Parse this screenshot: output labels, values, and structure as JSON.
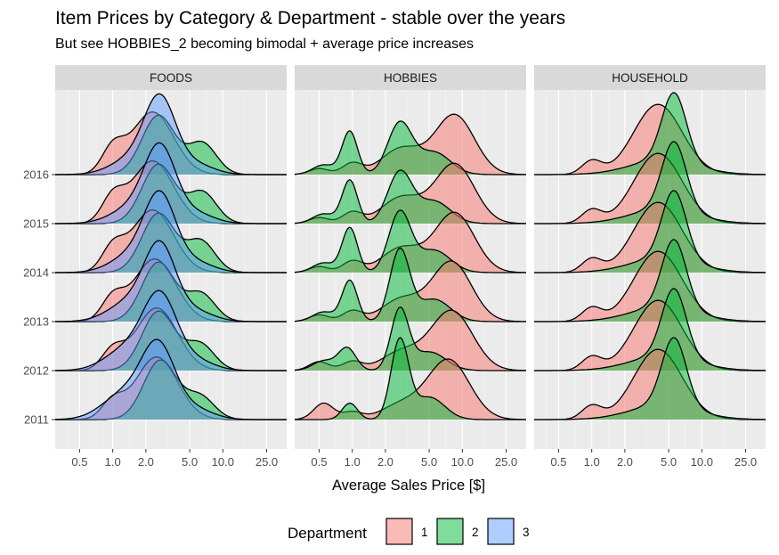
{
  "chart_data": {
    "type": "ridgeline-density",
    "title": "Item Prices by Category & Department - stable over the years",
    "subtitle": "But see HOBBIES_2 becoming bimodal + average price increases",
    "xlabel": "Average Sales Price [$]",
    "x_scale": "log10",
    "xlim": [
      0.3,
      38
    ],
    "x_ticks": [
      0.5,
      1,
      2,
      5,
      10,
      25
    ],
    "x_tick_labels": [
      "0.5",
      "1.0",
      "2.0",
      "5.0",
      "10.0",
      "25.0"
    ],
    "years": [
      "2016",
      "2015",
      "2014",
      "2013",
      "2012",
      "2011"
    ],
    "legend": {
      "title": "Department",
      "position": "bottom",
      "entries": [
        {
          "label": "1",
          "color": "#F8766D"
        },
        {
          "label": "2",
          "color": "#00BA38"
        },
        {
          "label": "3",
          "color": "#619CFF"
        }
      ]
    },
    "panels": [
      {
        "category": "FOODS",
        "departments": [
          {
            "dept": "1",
            "color": "#F8766D",
            "years": {
              "2016": [
                {
                  "x": 1.0,
                  "s": 0.1,
                  "w": 0.35
                },
                {
                  "x": 2.3,
                  "s": 0.19,
                  "w": 0.9
                }
              ],
              "2015": [
                {
                  "x": 1.0,
                  "s": 0.1,
                  "w": 0.35
                },
                {
                  "x": 2.3,
                  "s": 0.19,
                  "w": 0.9
                }
              ],
              "2014": [
                {
                  "x": 1.0,
                  "s": 0.1,
                  "w": 0.33
                },
                {
                  "x": 2.3,
                  "s": 0.19,
                  "w": 0.9
                }
              ],
              "2013": [
                {
                  "x": 1.0,
                  "s": 0.1,
                  "w": 0.32
                },
                {
                  "x": 2.4,
                  "s": 0.19,
                  "w": 0.9
                }
              ],
              "2012": [
                {
                  "x": 1.0,
                  "s": 0.1,
                  "w": 0.28
                },
                {
                  "x": 2.5,
                  "s": 0.19,
                  "w": 0.9
                }
              ],
              "2011": [
                {
                  "x": 1.0,
                  "s": 0.1,
                  "w": 0.25
                },
                {
                  "x": 2.5,
                  "s": 0.19,
                  "w": 0.9
                }
              ]
            }
          },
          {
            "dept": "2",
            "color": "#00BA38",
            "years": {
              "2016": [
                {
                  "x": 2.6,
                  "s": 0.15,
                  "w": 0.85
                },
                {
                  "x": 6.5,
                  "s": 0.13,
                  "w": 0.45
                }
              ],
              "2015": [
                {
                  "x": 2.6,
                  "s": 0.15,
                  "w": 0.85
                },
                {
                  "x": 6.5,
                  "s": 0.13,
                  "w": 0.45
                }
              ],
              "2014": [
                {
                  "x": 2.6,
                  "s": 0.15,
                  "w": 0.85
                },
                {
                  "x": 6.3,
                  "s": 0.13,
                  "w": 0.45
                }
              ],
              "2013": [
                {
                  "x": 2.6,
                  "s": 0.15,
                  "w": 0.85
                },
                {
                  "x": 6.3,
                  "s": 0.13,
                  "w": 0.4
                }
              ],
              "2012": [
                {
                  "x": 2.6,
                  "s": 0.15,
                  "w": 0.85
                },
                {
                  "x": 6.2,
                  "s": 0.13,
                  "w": 0.38
                }
              ],
              "2011": [
                {
                  "x": 2.7,
                  "s": 0.15,
                  "w": 0.85
                },
                {
                  "x": 6.2,
                  "s": 0.13,
                  "w": 0.33
                }
              ]
            }
          },
          {
            "dept": "3",
            "color": "#619CFF",
            "years": {
              "2016": [
                {
                  "x": 1.6,
                  "s": 0.2,
                  "w": 0.25
                },
                {
                  "x": 2.7,
                  "s": 0.14,
                  "w": 1.0
                },
                {
                  "x": 5.5,
                  "s": 0.17,
                  "w": 0.15
                }
              ],
              "2015": [
                {
                  "x": 1.6,
                  "s": 0.2,
                  "w": 0.25
                },
                {
                  "x": 2.7,
                  "s": 0.14,
                  "w": 1.0
                },
                {
                  "x": 5.5,
                  "s": 0.17,
                  "w": 0.15
                }
              ],
              "2014": [
                {
                  "x": 1.6,
                  "s": 0.2,
                  "w": 0.28
                },
                {
                  "x": 2.7,
                  "s": 0.14,
                  "w": 1.0
                },
                {
                  "x": 5.5,
                  "s": 0.17,
                  "w": 0.15
                }
              ],
              "2013": [
                {
                  "x": 1.5,
                  "s": 0.2,
                  "w": 0.3
                },
                {
                  "x": 2.7,
                  "s": 0.14,
                  "w": 1.0
                },
                {
                  "x": 5.5,
                  "s": 0.17,
                  "w": 0.15
                }
              ],
              "2012": [
                {
                  "x": 1.4,
                  "s": 0.2,
                  "w": 0.33
                },
                {
                  "x": 2.7,
                  "s": 0.15,
                  "w": 1.0
                },
                {
                  "x": 5.5,
                  "s": 0.17,
                  "w": 0.15
                }
              ],
              "2011": [
                {
                  "x": 1.3,
                  "s": 0.2,
                  "w": 0.38
                },
                {
                  "x": 2.6,
                  "s": 0.15,
                  "w": 1.0
                },
                {
                  "x": 5.5,
                  "s": 0.17,
                  "w": 0.15
                }
              ]
            }
          }
        ]
      },
      {
        "category": "HOBBIES",
        "departments": [
          {
            "dept": "1",
            "color": "#F8766D",
            "years": {
              "2016": [
                {
                  "x": 0.5,
                  "s": 0.09,
                  "w": 0.08
                },
                {
                  "x": 1.0,
                  "s": 0.09,
                  "w": 0.15
                },
                {
                  "x": 2.8,
                  "s": 0.18,
                  "w": 0.35
                },
                {
                  "x": 8.5,
                  "s": 0.18,
                  "w": 0.8
                }
              ],
              "2015": [
                {
                  "x": 0.5,
                  "s": 0.09,
                  "w": 0.08
                },
                {
                  "x": 1.0,
                  "s": 0.09,
                  "w": 0.15
                },
                {
                  "x": 2.8,
                  "s": 0.18,
                  "w": 0.35
                },
                {
                  "x": 8.5,
                  "s": 0.18,
                  "w": 0.8
                }
              ],
              "2014": [
                {
                  "x": 0.5,
                  "s": 0.09,
                  "w": 0.08
                },
                {
                  "x": 1.0,
                  "s": 0.09,
                  "w": 0.15
                },
                {
                  "x": 2.8,
                  "s": 0.18,
                  "w": 0.33
                },
                {
                  "x": 8.5,
                  "s": 0.18,
                  "w": 0.8
                }
              ],
              "2013": [
                {
                  "x": 0.5,
                  "s": 0.09,
                  "w": 0.09
                },
                {
                  "x": 1.0,
                  "s": 0.09,
                  "w": 0.14
                },
                {
                  "x": 2.8,
                  "s": 0.18,
                  "w": 0.3
                },
                {
                  "x": 8.0,
                  "s": 0.18,
                  "w": 0.8
                }
              ],
              "2012": [
                {
                  "x": 0.5,
                  "s": 0.09,
                  "w": 0.12
                },
                {
                  "x": 1.0,
                  "s": 0.09,
                  "w": 0.12
                },
                {
                  "x": 2.8,
                  "s": 0.18,
                  "w": 0.25
                },
                {
                  "x": 8.0,
                  "s": 0.19,
                  "w": 0.8
                }
              ],
              "2011": [
                {
                  "x": 0.55,
                  "s": 0.09,
                  "w": 0.22
                },
                {
                  "x": 1.0,
                  "s": 0.09,
                  "w": 0.1
                },
                {
                  "x": 2.8,
                  "s": 0.18,
                  "w": 0.2
                },
                {
                  "x": 7.5,
                  "s": 0.19,
                  "w": 0.8
                }
              ]
            }
          },
          {
            "dept": "2",
            "color": "#00BA38",
            "years": {
              "2016": [
                {
                  "x": 0.55,
                  "s": 0.1,
                  "w": 0.13
                },
                {
                  "x": 0.95,
                  "s": 0.07,
                  "w": 0.58
                },
                {
                  "x": 2.7,
                  "s": 0.11,
                  "w": 0.68
                },
                {
                  "x": 5.5,
                  "s": 0.15,
                  "w": 0.3
                }
              ],
              "2015": [
                {
                  "x": 0.55,
                  "s": 0.1,
                  "w": 0.13
                },
                {
                  "x": 0.95,
                  "s": 0.07,
                  "w": 0.58
                },
                {
                  "x": 2.7,
                  "s": 0.11,
                  "w": 0.68
                },
                {
                  "x": 5.5,
                  "s": 0.15,
                  "w": 0.3
                }
              ],
              "2014": [
                {
                  "x": 0.55,
                  "s": 0.1,
                  "w": 0.13
                },
                {
                  "x": 0.95,
                  "s": 0.07,
                  "w": 0.6
                },
                {
                  "x": 2.7,
                  "s": 0.1,
                  "w": 0.8
                },
                {
                  "x": 5.5,
                  "s": 0.15,
                  "w": 0.3
                }
              ],
              "2013": [
                {
                  "x": 0.55,
                  "s": 0.1,
                  "w": 0.13
                },
                {
                  "x": 0.95,
                  "s": 0.07,
                  "w": 0.55
                },
                {
                  "x": 2.7,
                  "s": 0.09,
                  "w": 0.95
                },
                {
                  "x": 5.5,
                  "s": 0.15,
                  "w": 0.3
                }
              ],
              "2012": [
                {
                  "x": 0.55,
                  "s": 0.1,
                  "w": 0.13
                },
                {
                  "x": 0.9,
                  "s": 0.08,
                  "w": 0.3
                },
                {
                  "x": 2.7,
                  "s": 0.08,
                  "w": 0.8
                },
                {
                  "x": 5.0,
                  "s": 0.15,
                  "w": 0.25
                }
              ],
              "2011": [
                {
                  "x": 0.95,
                  "s": 0.07,
                  "w": 0.22
                },
                {
                  "x": 2.7,
                  "s": 0.08,
                  "w": 1.05
                },
                {
                  "x": 5.0,
                  "s": 0.14,
                  "w": 0.3
                }
              ]
            }
          }
        ]
      },
      {
        "category": "HOUSEHOLD",
        "departments": [
          {
            "dept": "1",
            "color": "#F8766D",
            "years": {
              "2016": [
                {
                  "x": 1.0,
                  "s": 0.09,
                  "w": 0.18
                },
                {
                  "x": 4.0,
                  "s": 0.22,
                  "w": 0.95
                }
              ],
              "2015": [
                {
                  "x": 1.0,
                  "s": 0.09,
                  "w": 0.18
                },
                {
                  "x": 4.0,
                  "s": 0.22,
                  "w": 0.95
                }
              ],
              "2014": [
                {
                  "x": 1.0,
                  "s": 0.09,
                  "w": 0.18
                },
                {
                  "x": 4.0,
                  "s": 0.22,
                  "w": 0.95
                }
              ],
              "2013": [
                {
                  "x": 1.0,
                  "s": 0.09,
                  "w": 0.18
                },
                {
                  "x": 4.0,
                  "s": 0.22,
                  "w": 0.95
                }
              ],
              "2012": [
                {
                  "x": 1.0,
                  "s": 0.09,
                  "w": 0.18
                },
                {
                  "x": 4.0,
                  "s": 0.22,
                  "w": 0.95
                }
              ],
              "2011": [
                {
                  "x": 1.0,
                  "s": 0.09,
                  "w": 0.18
                },
                {
                  "x": 4.0,
                  "s": 0.22,
                  "w": 0.95
                }
              ]
            }
          },
          {
            "dept": "2",
            "color": "#00BA38",
            "years": {
              "2016": [
                {
                  "x": 4.5,
                  "s": 0.3,
                  "w": 0.2
                },
                {
                  "x": 5.6,
                  "s": 0.11,
                  "w": 0.92
                }
              ],
              "2015": [
                {
                  "x": 4.5,
                  "s": 0.3,
                  "w": 0.2
                },
                {
                  "x": 5.6,
                  "s": 0.11,
                  "w": 0.92
                }
              ],
              "2014": [
                {
                  "x": 4.5,
                  "s": 0.3,
                  "w": 0.2
                },
                {
                  "x": 5.6,
                  "s": 0.11,
                  "w": 0.92
                }
              ],
              "2013": [
                {
                  "x": 4.5,
                  "s": 0.3,
                  "w": 0.2
                },
                {
                  "x": 5.6,
                  "s": 0.11,
                  "w": 0.92
                }
              ],
              "2012": [
                {
                  "x": 4.5,
                  "s": 0.3,
                  "w": 0.2
                },
                {
                  "x": 5.6,
                  "s": 0.11,
                  "w": 0.92
                }
              ],
              "2011": [
                {
                  "x": 4.5,
                  "s": 0.3,
                  "w": 0.2
                },
                {
                  "x": 5.6,
                  "s": 0.11,
                  "w": 0.92
                }
              ]
            }
          }
        ]
      }
    ]
  }
}
